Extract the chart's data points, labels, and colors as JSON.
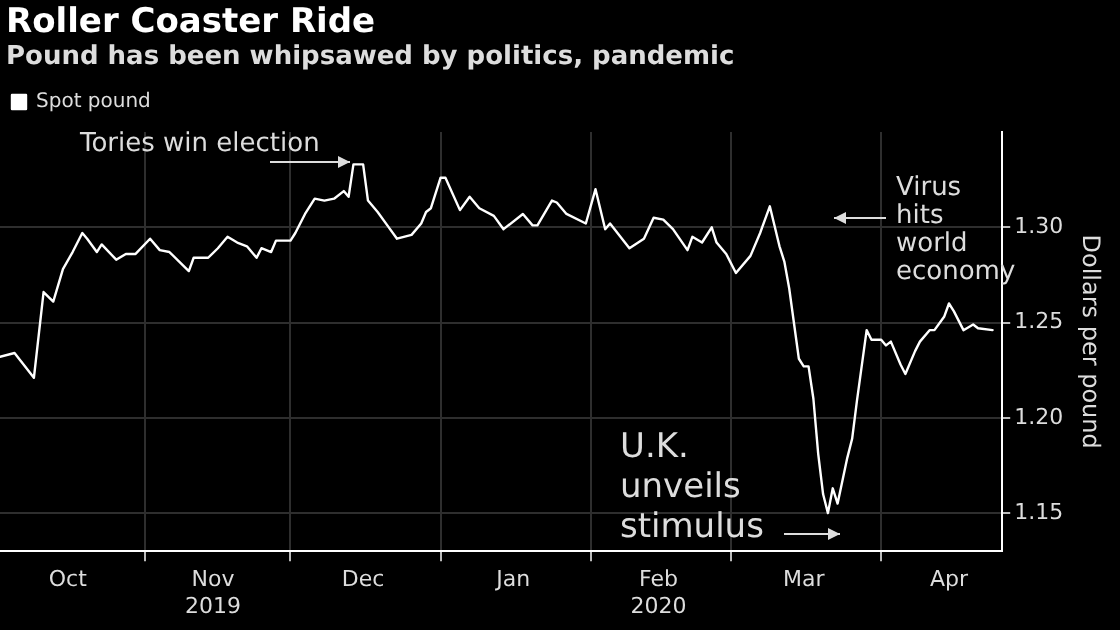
{
  "chart_data": {
    "type": "line",
    "title": "Roller Coaster Ride",
    "subtitle": "Pound has been whipsawed by politics, pandemic",
    "ylabel": "Dollars per pound",
    "x": [
      "2019-10-02",
      "2019-10-05",
      "2019-10-09",
      "2019-10-11",
      "2019-10-13",
      "2019-10-15",
      "2019-10-17",
      "2019-10-19",
      "2019-10-20",
      "2019-10-22",
      "2019-10-23",
      "2019-10-26",
      "2019-10-28",
      "2019-10-30",
      "2019-11-02",
      "2019-11-04",
      "2019-11-06",
      "2019-11-10",
      "2019-11-11",
      "2019-11-14",
      "2019-11-16",
      "2019-11-18",
      "2019-11-20",
      "2019-11-22",
      "2019-11-24",
      "2019-11-25",
      "2019-11-27",
      "2019-11-28",
      "2019-12-01",
      "2019-12-02",
      "2019-12-04",
      "2019-12-06",
      "2019-12-08",
      "2019-12-10",
      "2019-12-12",
      "2019-12-13",
      "2019-12-14",
      "2019-12-16",
      "2019-12-17",
      "2019-12-19",
      "2019-12-21",
      "2019-12-23",
      "2019-12-26",
      "2019-12-28",
      "2019-12-29",
      "2019-12-30",
      "2020-01-01",
      "2020-01-02",
      "2020-01-05",
      "2020-01-07",
      "2020-01-09",
      "2020-01-12",
      "2020-01-14",
      "2020-01-18",
      "2020-01-20",
      "2020-01-21",
      "2020-01-24",
      "2020-01-25",
      "2020-01-27",
      "2020-01-31",
      "2020-02-02",
      "2020-02-04",
      "2020-02-05",
      "2020-02-09",
      "2020-02-12",
      "2020-02-14",
      "2020-02-16",
      "2020-02-18",
      "2020-02-21",
      "2020-02-22",
      "2020-02-24",
      "2020-02-26",
      "2020-02-27",
      "2020-02-29",
      "2020-03-02",
      "2020-03-05",
      "2020-03-07",
      "2020-03-09",
      "2020-03-11",
      "2020-03-12",
      "2020-03-13",
      "2020-03-15",
      "2020-03-16",
      "2020-03-17",
      "2020-03-18",
      "2020-03-19",
      "2020-03-20",
      "2020-03-21",
      "2020-03-22",
      "2020-03-23",
      "2020-03-25",
      "2020-03-26",
      "2020-03-27",
      "2020-03-29",
      "2020-03-30",
      "2020-04-01",
      "2020-04-02",
      "2020-04-03",
      "2020-04-05",
      "2020-04-06",
      "2020-04-08",
      "2020-04-09",
      "2020-04-11",
      "2020-04-12",
      "2020-04-14",
      "2020-04-15",
      "2020-04-16",
      "2020-04-18",
      "2020-04-20",
      "2020-04-21",
      "2020-04-24"
    ],
    "series": [
      {
        "name": "Spot pound",
        "color": "#ffffff",
        "values": [
          1.232,
          1.234,
          1.221,
          1.266,
          1.261,
          1.278,
          1.287,
          1.297,
          1.294,
          1.287,
          1.291,
          1.283,
          1.286,
          1.286,
          1.294,
          1.288,
          1.287,
          1.277,
          1.284,
          1.284,
          1.289,
          1.295,
          1.292,
          1.29,
          1.284,
          1.289,
          1.287,
          1.293,
          1.293,
          1.297,
          1.307,
          1.315,
          1.314,
          1.315,
          1.319,
          1.316,
          1.333,
          1.333,
          1.314,
          1.308,
          1.301,
          1.294,
          1.296,
          1.302,
          1.308,
          1.31,
          1.326,
          1.326,
          1.309,
          1.316,
          1.31,
          1.306,
          1.299,
          1.307,
          1.301,
          1.301,
          1.314,
          1.313,
          1.307,
          1.302,
          1.32,
          1.299,
          1.302,
          1.289,
          1.294,
          1.305,
          1.304,
          1.299,
          1.288,
          1.295,
          1.292,
          1.3,
          1.292,
          1.286,
          1.276,
          1.285,
          1.297,
          1.311,
          1.29,
          1.282,
          1.268,
          1.231,
          1.227,
          1.227,
          1.21,
          1.181,
          1.16,
          1.15,
          1.163,
          1.155,
          1.179,
          1.189,
          1.209,
          1.246,
          1.241,
          1.241,
          1.238,
          1.24,
          1.228,
          1.223,
          1.235,
          1.24,
          1.246,
          1.246,
          1.253,
          1.26,
          1.256,
          1.246,
          1.249,
          1.247,
          1.246
        ]
      }
    ],
    "xlim": [
      "2019-10-02",
      "2020-04-26"
    ],
    "xticks": [
      {
        "value": "2019-10-16",
        "label": "Oct"
      },
      {
        "value": "2019-11-01",
        "label": null
      },
      {
        "value": "2019-11-15",
        "label": "Nov\n2019"
      },
      {
        "value": "2019-12-01",
        "label": null
      },
      {
        "value": "2019-12-16",
        "label": "Dec"
      },
      {
        "value": "2020-01-01",
        "label": null
      },
      {
        "value": "2020-01-16",
        "label": "Jan"
      },
      {
        "value": "2020-02-01",
        "label": null
      },
      {
        "value": "2020-02-15",
        "label": "Feb\n2020"
      },
      {
        "value": "2020-03-01",
        "label": null
      },
      {
        "value": "2020-03-16",
        "label": "Mar"
      },
      {
        "value": "2020-04-01",
        "label": null
      },
      {
        "value": "2020-04-15",
        "label": "Apr"
      }
    ],
    "ylim": [
      1.13,
      1.35
    ],
    "yticks": [
      {
        "value": 1.15,
        "label": "1.15"
      },
      {
        "value": 1.2,
        "label": "1.20"
      },
      {
        "value": 1.25,
        "label": "1.25"
      },
      {
        "value": 1.3,
        "label": "1.30"
      }
    ],
    "grid": true,
    "legend": "top left",
    "marker": "none",
    "line_style": "solid",
    "annotations": [
      "Tories win election",
      "Virus hits world economy",
      "U.K. unveils stimulus"
    ]
  }
}
